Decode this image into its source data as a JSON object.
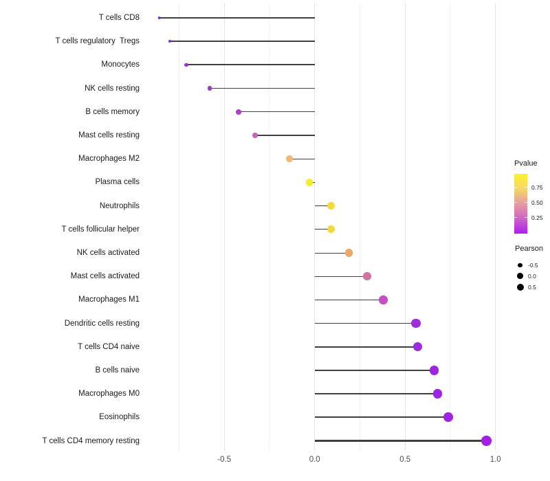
{
  "chart_data": {
    "type": "lollipop",
    "orientation": "horizontal",
    "title": "",
    "xlabel": "",
    "ylabel": "",
    "xlim": [
      -0.93,
      1.1
    ],
    "x_ticks": [
      -0.5,
      0.0,
      0.5,
      1.0
    ],
    "x_tick_labels": [
      "-0.5",
      "0.0",
      "0.5",
      "1.0"
    ],
    "x_minor_ticks": [
      -0.75,
      -0.25,
      0.25,
      0.75
    ],
    "grid": "major+minor vertical, no axis lines, white panel",
    "rows": [
      {
        "label": "T cells CD8",
        "pearson": -0.86,
        "color": "#8326d2"
      },
      {
        "label": "T cells regulatory  Tregs",
        "pearson": -0.8,
        "color": "#8c2ad6"
      },
      {
        "label": "Monocytes",
        "pearson": -0.71,
        "color": "#9530d4"
      },
      {
        "label": "NK cells resting",
        "pearson": -0.58,
        "color": "#9c35d2"
      },
      {
        "label": "B cells memory",
        "pearson": -0.42,
        "color": "#af41c8"
      },
      {
        "label": "Mast cells resting",
        "pearson": -0.33,
        "color": "#c465b8"
      },
      {
        "label": "Macrophages M2",
        "pearson": -0.14,
        "color": "#f0b878"
      },
      {
        "label": "Plasma cells",
        "pearson": -0.03,
        "color": "#f8ed27"
      },
      {
        "label": "Neutrophils",
        "pearson": 0.09,
        "color": "#f2da3d"
      },
      {
        "label": "T cells follicular helper",
        "pearson": 0.09,
        "color": "#f2da3d"
      },
      {
        "label": "NK cells activated",
        "pearson": 0.19,
        "color": "#efa766"
      },
      {
        "label": "Mast cells activated",
        "pearson": 0.29,
        "color": "#d2709f"
      },
      {
        "label": "Macrophages M1",
        "pearson": 0.38,
        "color": "#c44fc6"
      },
      {
        "label": "Dendritic cells resting",
        "pearson": 0.56,
        "color": "#9c2cdc"
      },
      {
        "label": "T cells CD4 naive",
        "pearson": 0.57,
        "color": "#9c2cdc"
      },
      {
        "label": "B cells naive",
        "pearson": 0.66,
        "color": "#9d26e0"
      },
      {
        "label": "Macrophages M0",
        "pearson": 0.68,
        "color": "#9d26e0"
      },
      {
        "label": "Eosinophils",
        "pearson": 0.74,
        "color": "#a022e2"
      },
      {
        "label": "T cells CD4 memory resting",
        "pearson": 0.95,
        "color": "#a51ee6"
      }
    ],
    "legend_position": "right"
  },
  "legend_pvalue": {
    "title": "Pvalue",
    "tick_labels": [
      "0.75",
      "0.50",
      "0.25"
    ],
    "gradient_bottom_to_top": [
      "#ad1df2",
      "#ce64c4",
      "#e89ba2",
      "#f6d668",
      "#fcf32c"
    ]
  },
  "legend_pearson": {
    "title": "Pearson",
    "items": [
      {
        "label": "-0.5",
        "diameter": 6.7
      },
      {
        "label": "0.0",
        "diameter": 8.7
      },
      {
        "label": "0.5",
        "diameter": 10
      }
    ]
  },
  "colors": {
    "stick": "#3f3f3f",
    "grid_major": "#e4e4e4",
    "grid_minor": "#f1f1f1",
    "axis_text": "#4d4d4d",
    "label_text": "#1a1a1a",
    "background": "#ffffff"
  }
}
